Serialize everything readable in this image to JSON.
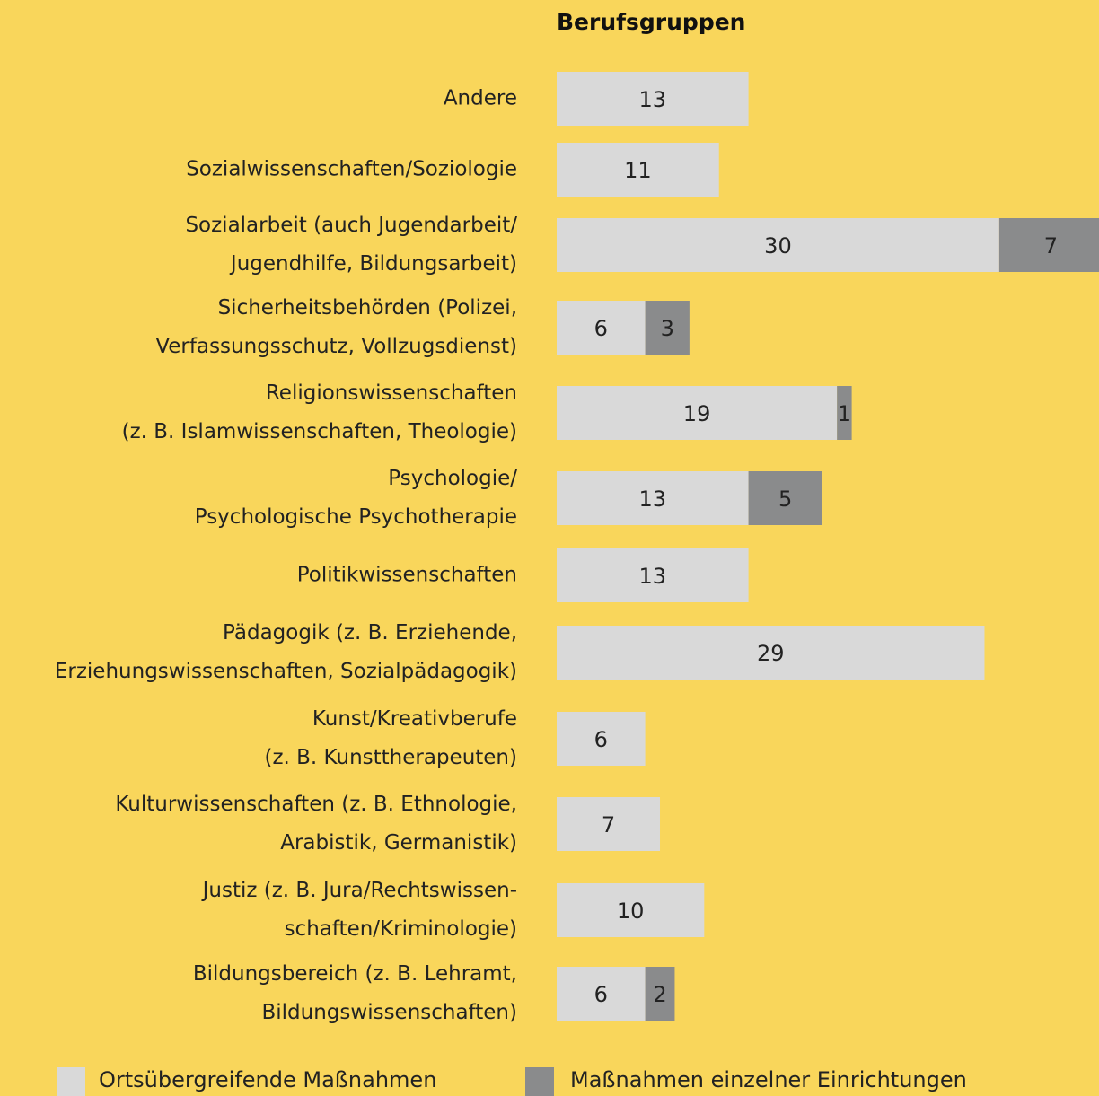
{
  "chart_data": {
    "type": "stacked-bar-horizontal",
    "title": "Berufsgruppen",
    "categories": [
      "Andere",
      "Sozialwissenschaften/Soziologie",
      "Sozialarbeit (auch Jugendarbeit/\nJugendhilfe, Bildungsarbeit)",
      "Sicherheitsbehörden (Polizei,\nVerfassungsschutz, Vollzugsdienst)",
      "Religionswissenschaften\n(z. B. Islamwissenschaften, Theologie)",
      "Psychologie/\nPsychologische Psychotherapie",
      "Politikwissenschaften",
      "Pädagogik (z. B. Erziehende,\nErziehungswissenschaften, Sozialpädagogik)",
      "Kunst/Kreativberufe\n(z. B. Kunsttherapeuten)",
      "Kulturwissenschaften (z. B. Ethnologie,\nArabistik, Germanistik)",
      "Justiz (z. B. Jura/Rechtswissen-\nschaften/Kriminologie)",
      "Bildungsbereich (z. B. Lehramt,\nBildungswissenschaften)"
    ],
    "series": [
      {
        "name": "Ortsübergreifende Maßnahmen",
        "color": "#d9d9d9",
        "values": [
          13,
          11,
          30,
          6,
          19,
          13,
          13,
          29,
          6,
          7,
          10,
          6
        ]
      },
      {
        "name": "Maßnahmen einzelner Einrichtungen",
        "color": "#8a8b8c",
        "values": [
          null,
          null,
          7,
          3,
          1,
          5,
          null,
          null,
          null,
          null,
          null,
          2
        ]
      }
    ]
  }
}
